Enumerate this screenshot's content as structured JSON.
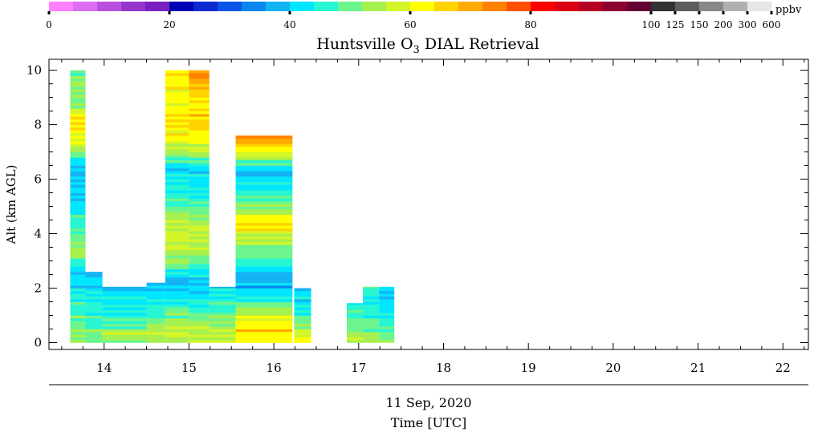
{
  "chart_data": {
    "type": "heatmap",
    "title_prefix": "Huntsville O",
    "title_sub": "3",
    "title_suffix": " DIAL Retrieval",
    "ylabel": "Alt (km AGL)",
    "xlabel_date": "11 Sep, 2020",
    "xlabel": "Time [UTC]",
    "colorbar_unit": "ppbv",
    "xlim": [
      13.35,
      22.3
    ],
    "ylim": [
      -0.25,
      10.4
    ],
    "x_ticks": [
      14,
      15,
      16,
      17,
      18,
      19,
      20,
      21,
      22
    ],
    "y_ticks": [
      0,
      2,
      4,
      6,
      8,
      10
    ],
    "colorbar": {
      "colors": [
        "#ff80ff",
        "#dd6ef0",
        "#b850e0",
        "#9535cc",
        "#7a1fc0",
        "#0000b4",
        "#0a2ad0",
        "#0a54e8",
        "#0a86ee",
        "#14b4f4",
        "#00e6ff",
        "#28f5d2",
        "#6cf58c",
        "#a6f050",
        "#d4f528",
        "#ffff00",
        "#ffd200",
        "#ffaa00",
        "#ff8200",
        "#ff5000",
        "#ff0000",
        "#dc0014",
        "#b40022",
        "#8c0030",
        "#640032",
        "#323232",
        "#5c5c5c",
        "#888888",
        "#b0b0b0",
        "#e6e6e6"
      ],
      "ticks": [
        {
          "label": "0",
          "index": 0
        },
        {
          "label": "20",
          "index": 5
        },
        {
          "label": "40",
          "index": 10
        },
        {
          "label": "60",
          "index": 15
        },
        {
          "label": "80",
          "index": 20
        },
        {
          "label": "100",
          "index": 25
        },
        {
          "label": "125",
          "index": 26
        },
        {
          "label": "150",
          "index": 27
        },
        {
          "label": "200",
          "index": 28
        },
        {
          "label": "300",
          "index": 29
        },
        {
          "label": "600",
          "index": 30
        }
      ]
    },
    "profiles": [
      {
        "t0": 13.6,
        "t1": 13.78,
        "top": 10.0,
        "profile": [
          [
            0,
            52
          ],
          [
            0.8,
            50
          ],
          [
            1.2,
            47
          ],
          [
            1.8,
            44
          ],
          [
            2.3,
            40
          ],
          [
            2.8,
            43
          ],
          [
            3.4,
            55
          ],
          [
            4.0,
            49
          ],
          [
            4.6,
            46
          ],
          [
            5.2,
            40
          ],
          [
            5.8,
            42
          ],
          [
            6.5,
            37
          ],
          [
            7.0,
            53
          ],
          [
            7.6,
            62
          ],
          [
            8.2,
            65
          ],
          [
            8.8,
            50
          ],
          [
            9.5,
            54
          ],
          [
            10,
            48
          ]
        ]
      },
      {
        "t0": 13.78,
        "t1": 13.98,
        "top": 2.6,
        "profile": [
          [
            0,
            52
          ],
          [
            0.6,
            48
          ],
          [
            1.2,
            46
          ],
          [
            1.8,
            43
          ],
          [
            2.3,
            41
          ],
          [
            2.6,
            40
          ]
        ]
      },
      {
        "t0": 13.98,
        "t1": 14.5,
        "top": 2.05,
        "profile": [
          [
            0,
            52
          ],
          [
            0.3,
            56
          ],
          [
            0.7,
            47
          ],
          [
            1.2,
            45
          ],
          [
            1.7,
            42
          ],
          [
            2.05,
            40
          ]
        ]
      },
      {
        "t0": 14.5,
        "t1": 14.72,
        "top": 2.2,
        "profile": [
          [
            0,
            54
          ],
          [
            0.4,
            56
          ],
          [
            0.9,
            48
          ],
          [
            1.4,
            44
          ],
          [
            1.8,
            41
          ],
          [
            2.2,
            38
          ]
        ]
      },
      {
        "t0": 14.72,
        "t1": 15.0,
        "top": 10.0,
        "profile": [
          [
            0,
            55
          ],
          [
            0.5,
            57
          ],
          [
            1.0,
            50
          ],
          [
            1.6,
            44
          ],
          [
            2.2,
            38
          ],
          [
            2.8,
            49
          ],
          [
            3.4,
            56
          ],
          [
            4.0,
            58
          ],
          [
            4.6,
            55
          ],
          [
            5.2,
            47
          ],
          [
            5.8,
            45
          ],
          [
            6.4,
            40
          ],
          [
            7.0,
            54
          ],
          [
            7.6,
            62
          ],
          [
            8.2,
            64
          ],
          [
            8.8,
            60
          ],
          [
            9.4,
            63
          ],
          [
            10,
            62
          ]
        ]
      },
      {
        "t0": 15.0,
        "t1": 15.24,
        "top": 10.0,
        "profile": [
          [
            0,
            55
          ],
          [
            0.5,
            57
          ],
          [
            1.0,
            48
          ],
          [
            1.6,
            44
          ],
          [
            2.2,
            39
          ],
          [
            2.8,
            47
          ],
          [
            3.4,
            54
          ],
          [
            4.0,
            57
          ],
          [
            4.6,
            53
          ],
          [
            5.2,
            45
          ],
          [
            5.8,
            44
          ],
          [
            6.4,
            41
          ],
          [
            7.0,
            56
          ],
          [
            7.6,
            63
          ],
          [
            8.2,
            66
          ],
          [
            8.8,
            63
          ],
          [
            9.4,
            68
          ],
          [
            10,
            75
          ]
        ]
      },
      {
        "t0": 15.24,
        "t1": 15.55,
        "top": 2.05,
        "profile": [
          [
            0,
            58
          ],
          [
            0.5,
            55
          ],
          [
            1.0,
            49
          ],
          [
            1.5,
            46
          ],
          [
            2.05,
            41
          ]
        ]
      },
      {
        "t0": 15.55,
        "t1": 16.22,
        "top": 7.6,
        "profile": [
          [
            0,
            62
          ],
          [
            0.4,
            65
          ],
          [
            0.9,
            60
          ],
          [
            1.4,
            50
          ],
          [
            1.9,
            40
          ],
          [
            2.4,
            38
          ],
          [
            3.0,
            46
          ],
          [
            3.5,
            52
          ],
          [
            4.0,
            58
          ],
          [
            4.3,
            66
          ],
          [
            4.8,
            55
          ],
          [
            5.3,
            47
          ],
          [
            5.8,
            43
          ],
          [
            6.3,
            38
          ],
          [
            6.8,
            56
          ],
          [
            7.2,
            65
          ],
          [
            7.6,
            76
          ]
        ]
      },
      {
        "t0": 16.24,
        "t1": 16.44,
        "top": 2.0,
        "profile": [
          [
            0,
            65
          ],
          [
            0.4,
            57
          ],
          [
            0.8,
            50
          ],
          [
            1.3,
            44
          ],
          [
            2.0,
            40
          ]
        ]
      },
      {
        "t0": 16.86,
        "t1": 17.05,
        "top": 1.45,
        "profile": [
          [
            0,
            58
          ],
          [
            0.4,
            52
          ],
          [
            0.9,
            48
          ],
          [
            1.45,
            44
          ]
        ]
      },
      {
        "t0": 17.05,
        "t1": 17.24,
        "top": 2.05,
        "profile": [
          [
            0,
            55
          ],
          [
            0.5,
            50
          ],
          [
            1.0,
            46
          ],
          [
            1.6,
            43
          ],
          [
            2.05,
            47
          ]
        ]
      },
      {
        "t0": 17.24,
        "t1": 17.42,
        "top": 2.05,
        "profile": [
          [
            0,
            52
          ],
          [
            0.5,
            49
          ],
          [
            1.0,
            45
          ],
          [
            1.6,
            40
          ],
          [
            2.05,
            40
          ]
        ]
      }
    ]
  }
}
